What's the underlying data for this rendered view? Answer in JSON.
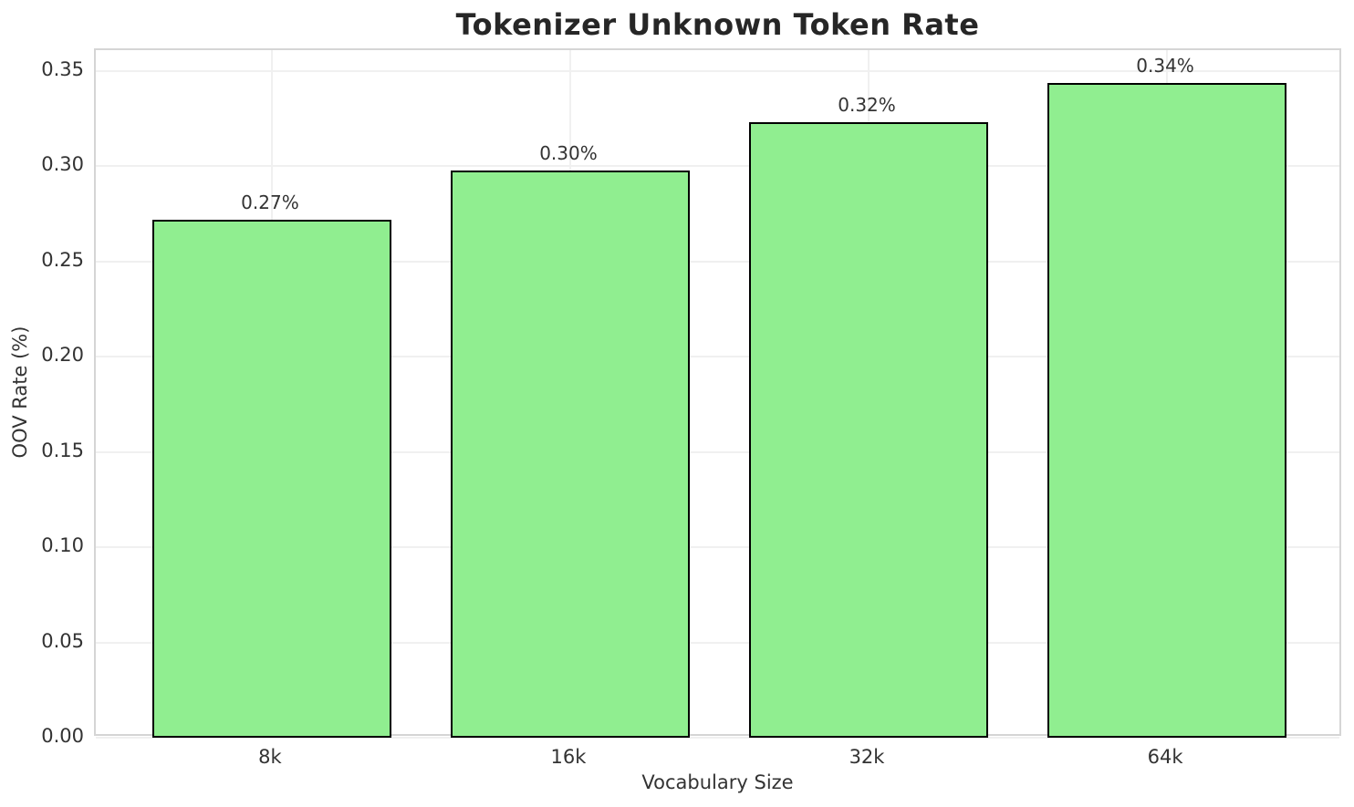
{
  "chart_data": {
    "type": "bar",
    "title": "Tokenizer Unknown Token Rate",
    "xlabel": "Vocabulary Size",
    "ylabel": "OOV Rate (%)",
    "categories": [
      "8k",
      "16k",
      "32k",
      "64k"
    ],
    "values": [
      0.272,
      0.298,
      0.323,
      0.344
    ],
    "bar_labels": [
      "0.27%",
      "0.30%",
      "0.32%",
      "0.34%"
    ],
    "yticks": [
      "0.00",
      "0.05",
      "0.10",
      "0.15",
      "0.20",
      "0.25",
      "0.30",
      "0.35"
    ],
    "ylim": [
      0,
      0.361
    ],
    "xlim": [
      -0.59,
      3.59
    ],
    "bar_width": 0.8,
    "grid": true,
    "legend": "none",
    "colors": {
      "bar_fill": "#90EE90",
      "bar_edge": "#000000",
      "grid_line": "#f0f0f0",
      "spine": "#d5d5d5",
      "tick_text": "#333333",
      "title_text": "#262626",
      "background": "#ffffff"
    }
  }
}
